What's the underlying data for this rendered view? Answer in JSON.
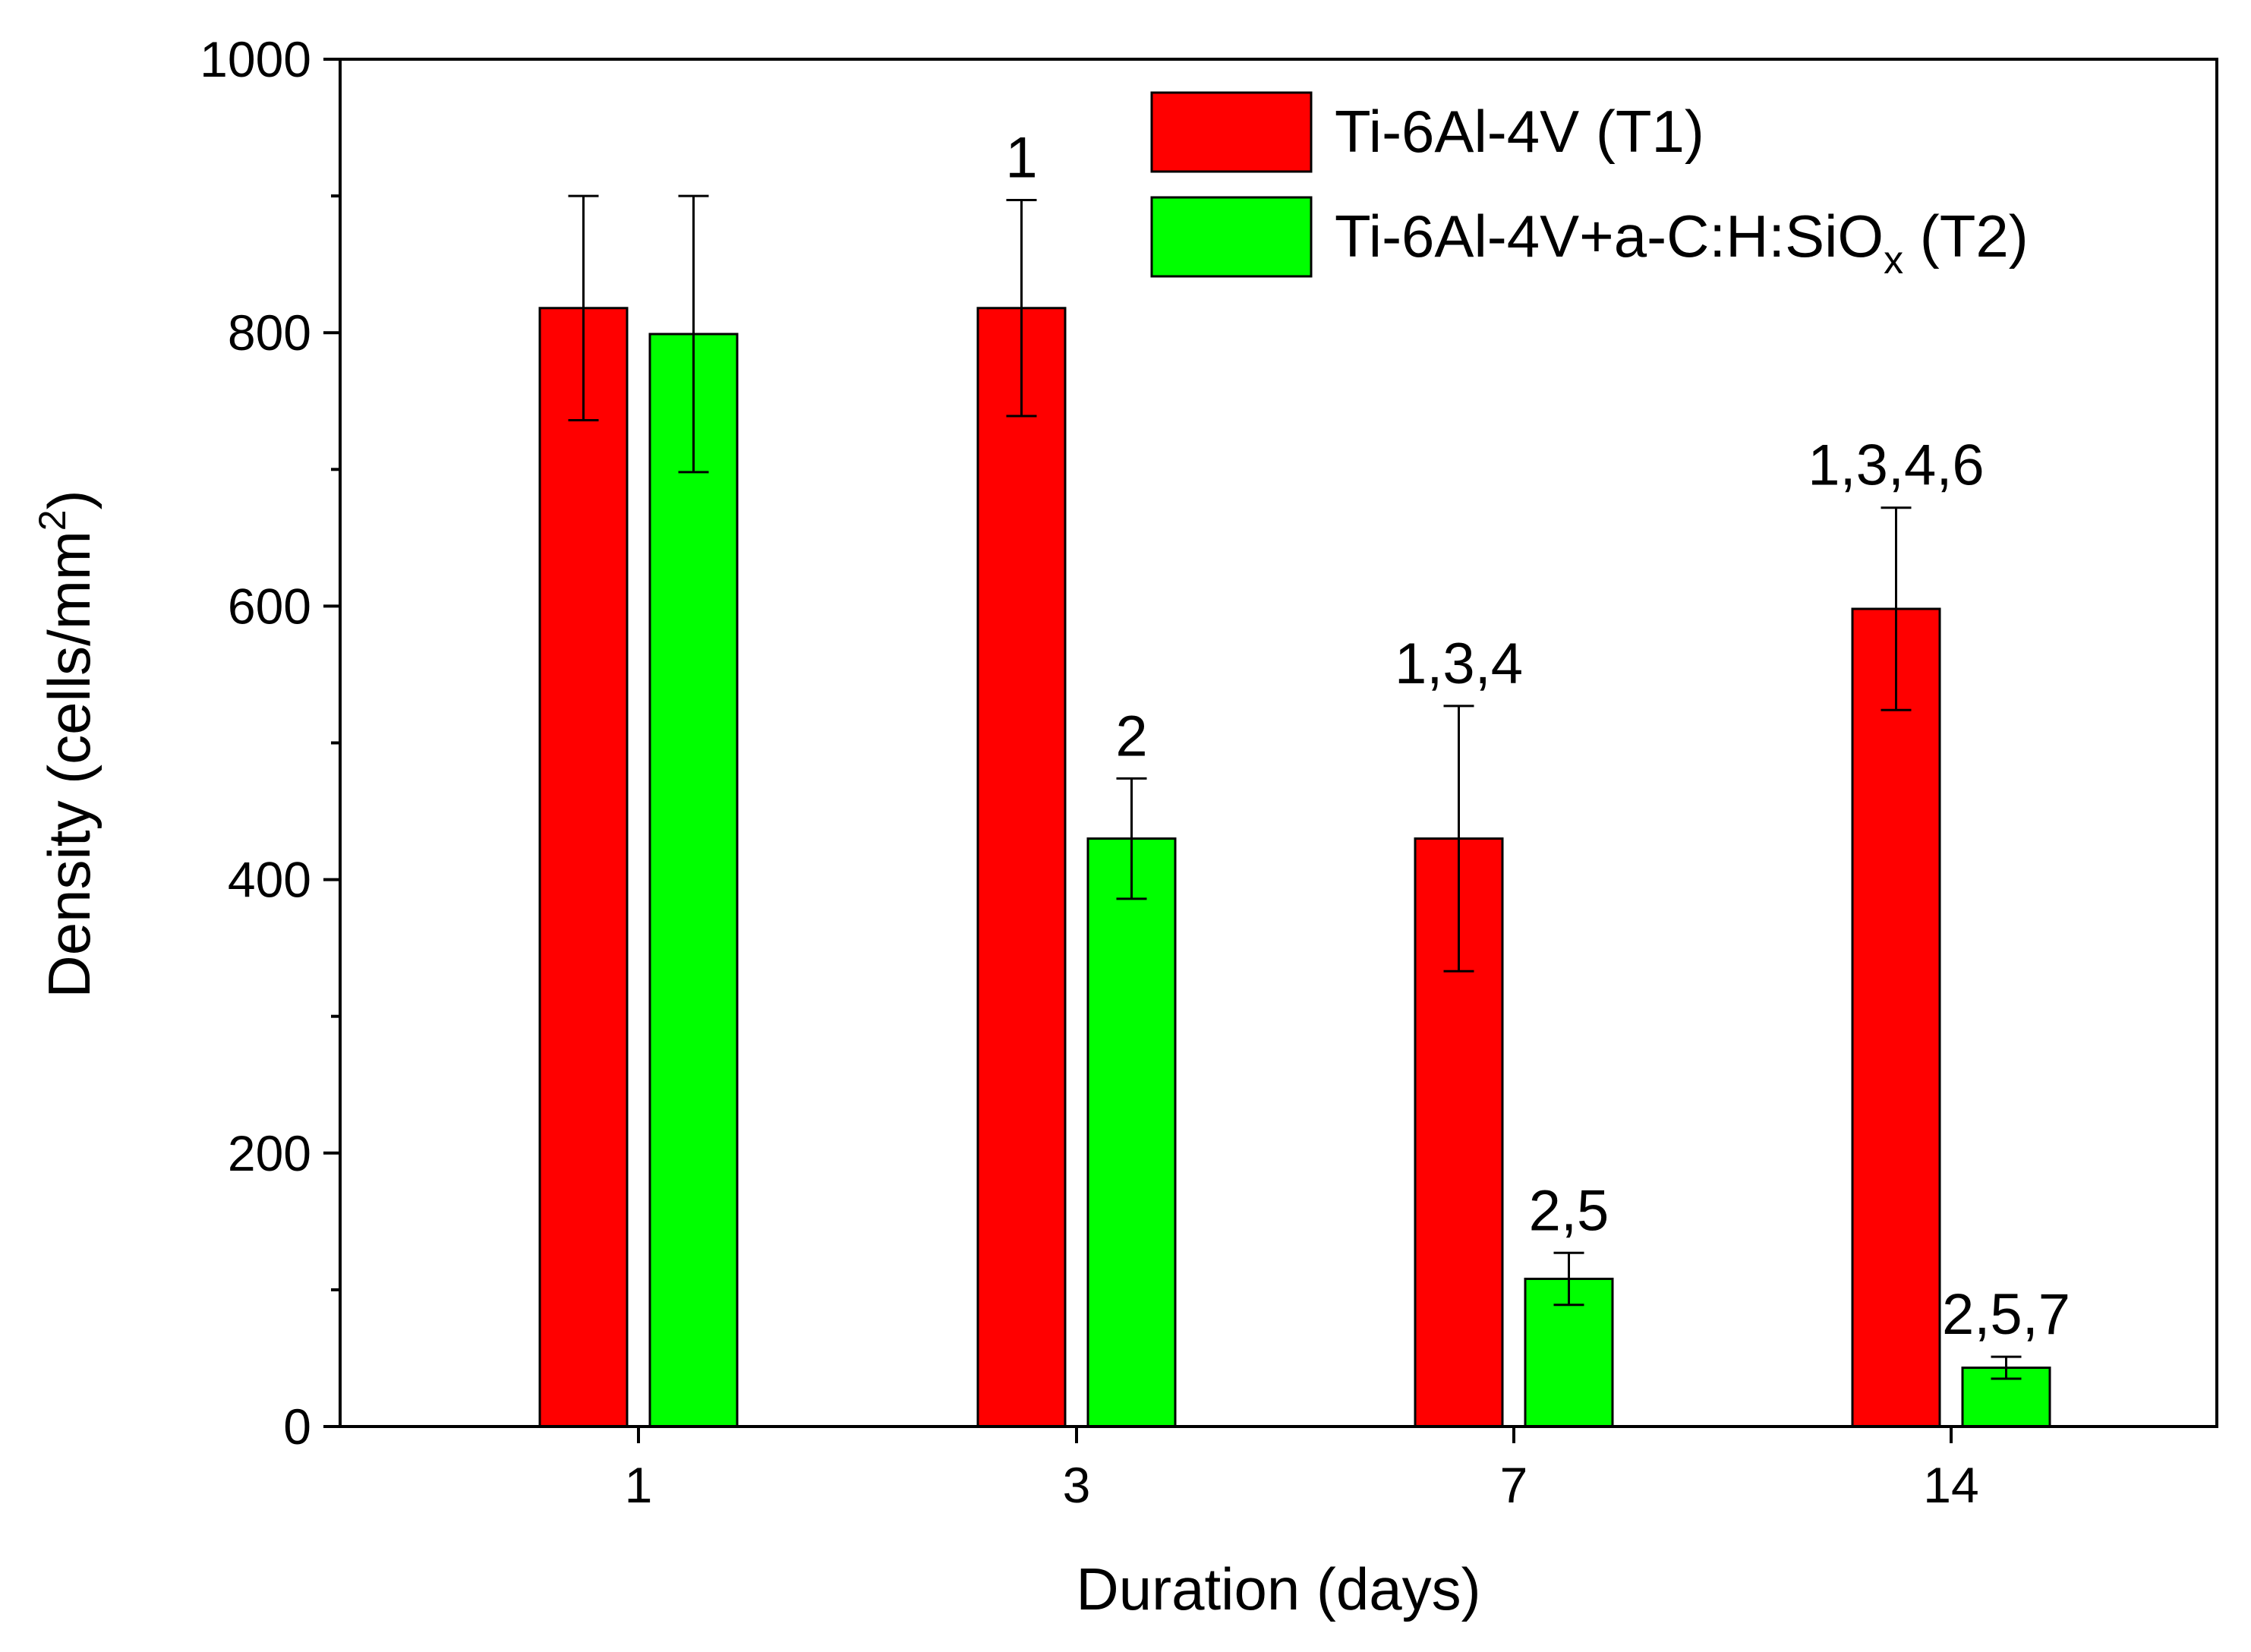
{
  "chart_data": {
    "type": "bar",
    "title": "",
    "xlabel": "Duration (days)",
    "ylabel_main": "Density (cells/mm",
    "ylabel_sup": "2",
    "ylabel_close": ")",
    "categories": [
      "1",
      "3",
      "7",
      "14"
    ],
    "ylim": [
      0,
      1000
    ],
    "yticks": [
      "0",
      "200",
      "400",
      "600",
      "800",
      "1000"
    ],
    "grid": false,
    "legend_position": "top-right",
    "series": [
      {
        "name": "Ti-6Al-4V (T1)",
        "legend_text": "Ti-6Al-4V (T1)",
        "color": "#ff0000",
        "values": [
          818,
          818,
          430,
          598
        ],
        "errors": [
          82,
          79,
          97,
          74
        ],
        "annotations": [
          "",
          "1",
          "1,3,4",
          "1,3,4,6"
        ]
      },
      {
        "name": "Ti-6Al-4V+a-C:H:SiOx (T2)",
        "legend_text_main": "Ti-6Al-4V+a-C:H:SiO",
        "legend_text_sub": "x",
        "legend_text_tail": " (T2)",
        "color": "#00ff00",
        "values": [
          799,
          430,
          108,
          43
        ],
        "errors": [
          101,
          44,
          19,
          8
        ],
        "annotations": [
          "",
          "2",
          "2,5",
          "2,5,7"
        ]
      }
    ]
  }
}
